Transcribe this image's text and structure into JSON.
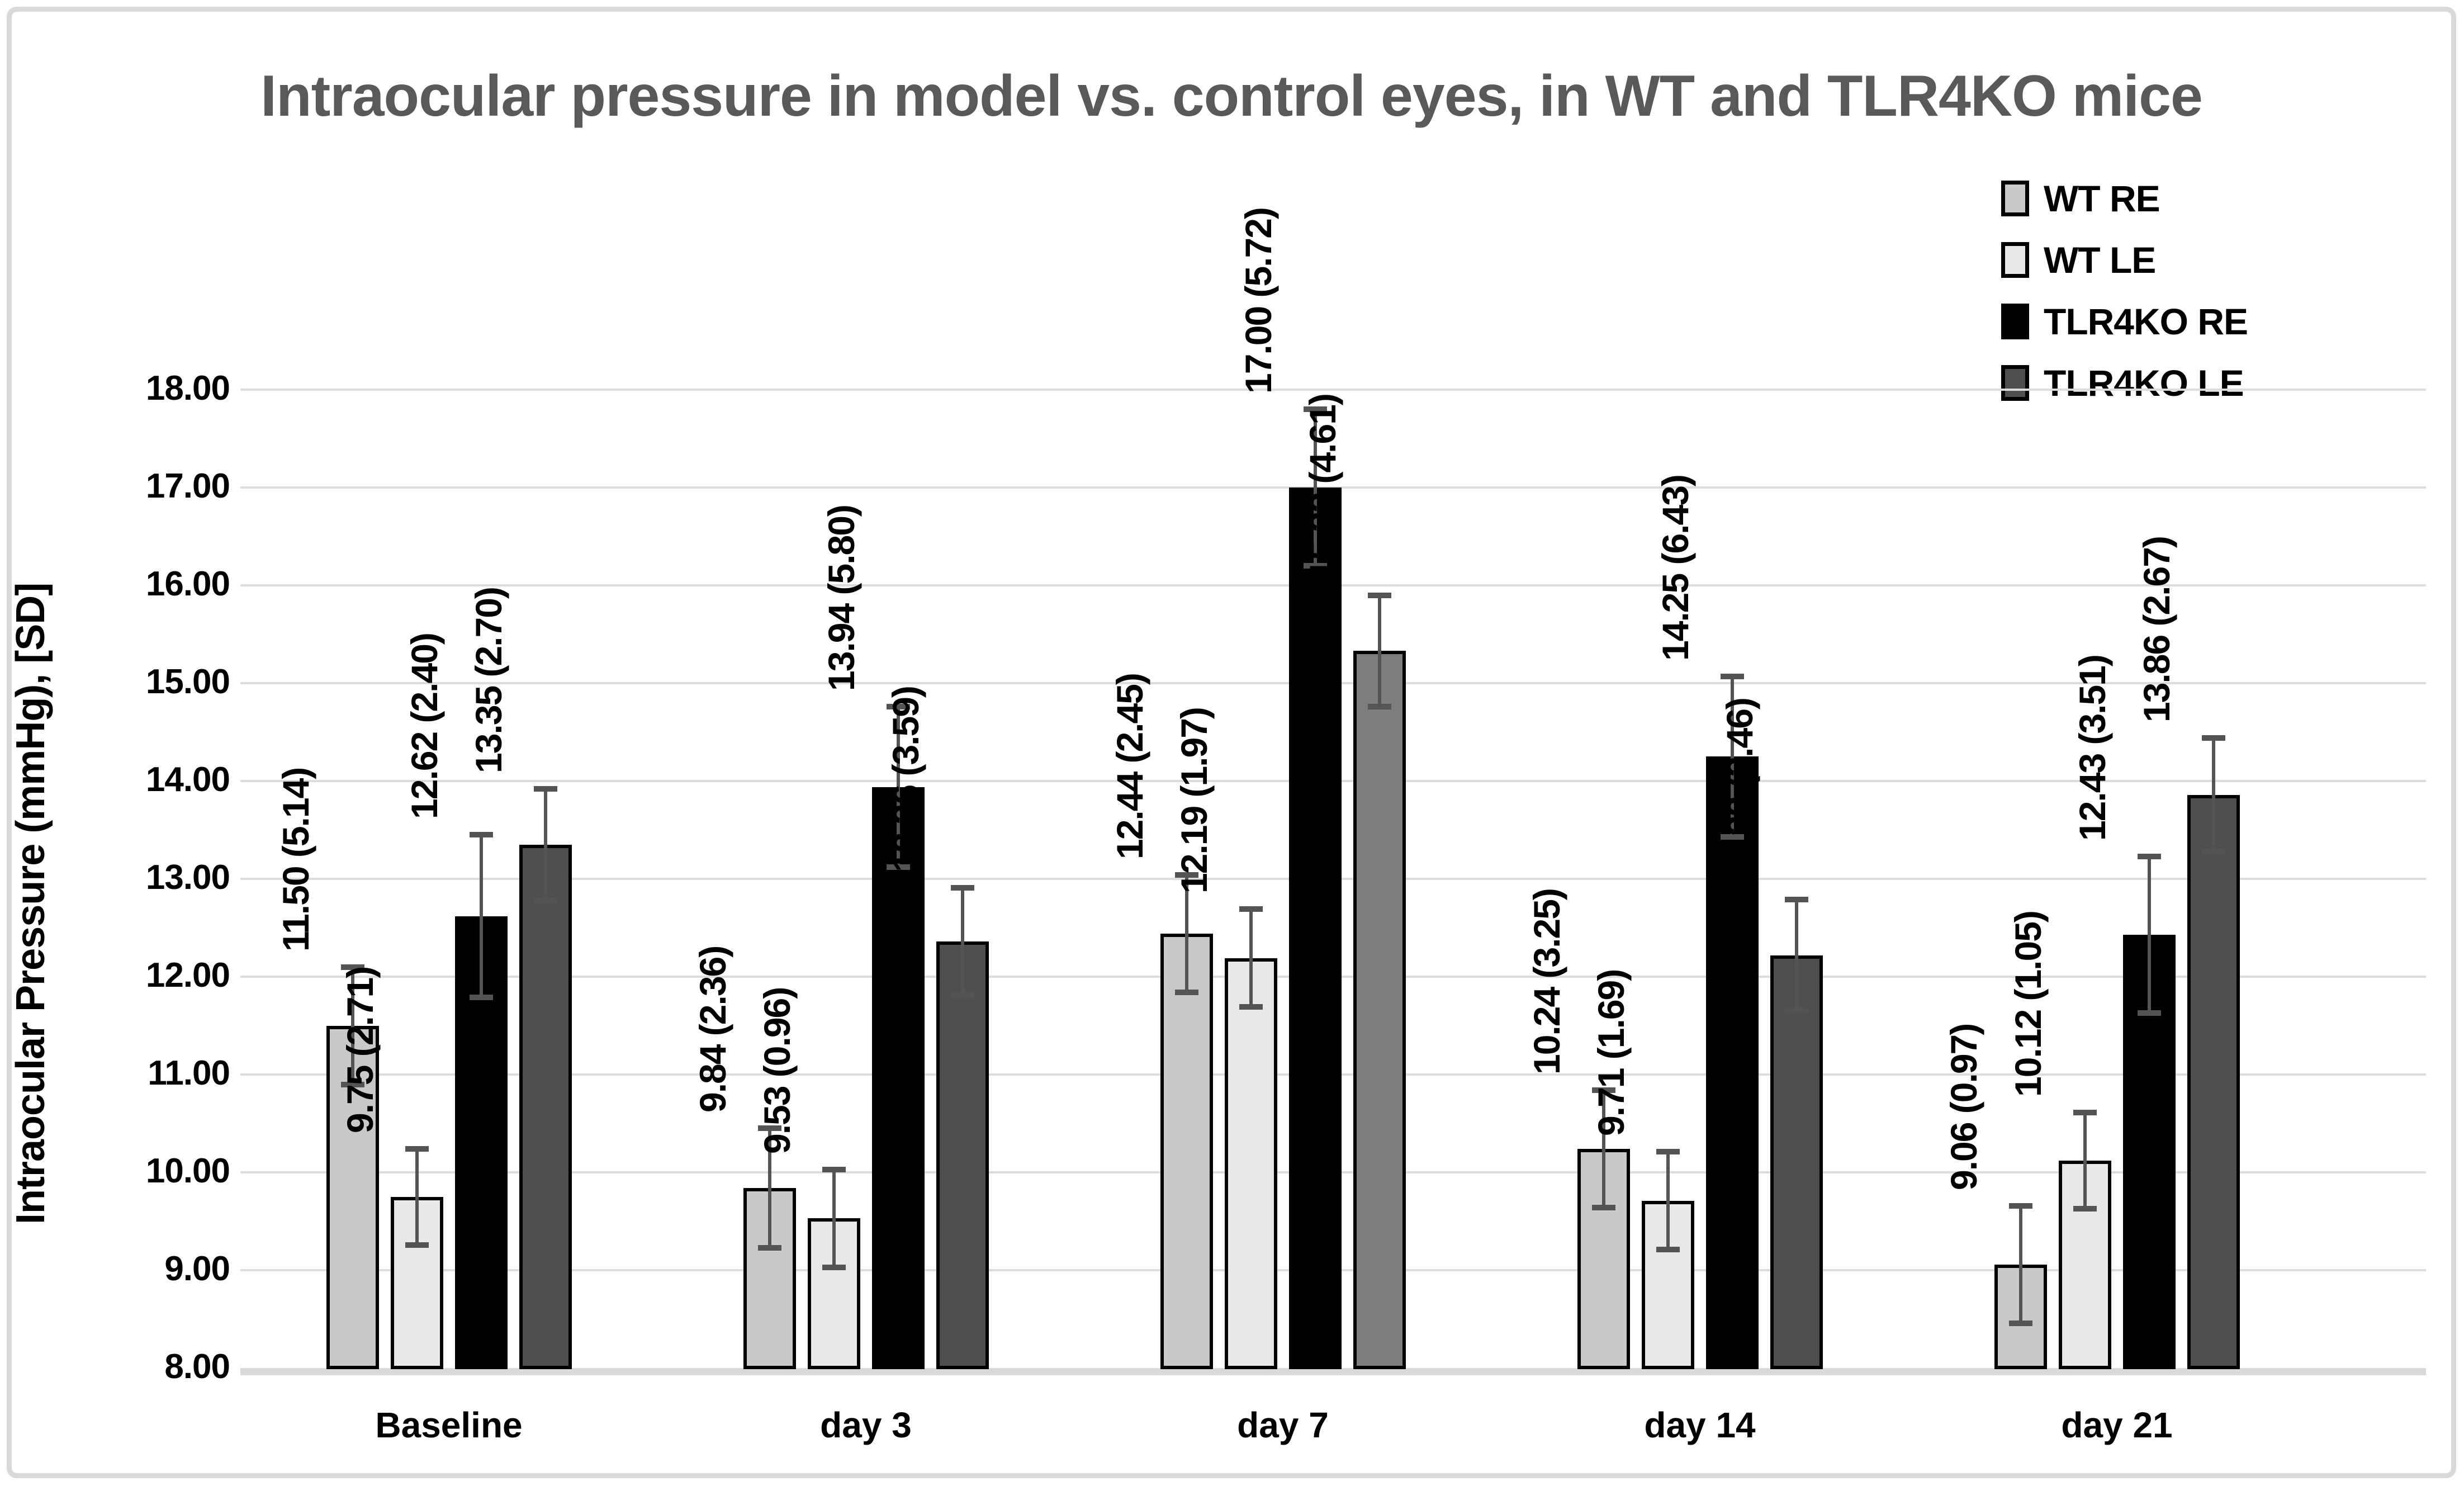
{
  "figure": {
    "background": "#ffffff",
    "frame_color": "#d9d9d9"
  },
  "chart_data": {
    "type": "bar",
    "title": "Intraocular pressure in model vs. control eyes, in WT and TLR4KO mice",
    "title_color": "#595959",
    "xlabel": "",
    "ylabel": "Intraocular Pressure (mmHg), [SD]",
    "categories": [
      "Baseline",
      "day 3",
      "day 7",
      "day 14",
      "day 21"
    ],
    "ylim": [
      8,
      18
    ],
    "ytick_step": 1,
    "ytick_decimals": 2,
    "grid": true,
    "gridline_color": "#dcdcdc",
    "axisline_color": "#d9d9d9",
    "errorbar_color": "#545454",
    "legend_position": "top-right-overlay",
    "data_label_format": "{value} ({sd})",
    "series": [
      {
        "name": "WT RE",
        "fill": "#c9c9c9",
        "border": "#000000",
        "values": [
          11.5,
          9.84,
          12.44,
          10.24,
          9.06
        ],
        "sd": [
          5.14,
          2.36,
          2.45,
          3.25,
          0.97
        ],
        "error_plus_minus": [
          0.6,
          0.61,
          0.6,
          0.6,
          0.6
        ]
      },
      {
        "name": "WT LE",
        "fill": "#e8e8e8",
        "border": "#000000",
        "values": [
          9.75,
          9.53,
          12.19,
          9.71,
          10.12
        ],
        "sd": [
          2.71,
          0.96,
          1.97,
          1.69,
          1.05
        ],
        "error_plus_minus": [
          0.49,
          0.5,
          0.5,
          0.5,
          0.49
        ]
      },
      {
        "name": "TLR4KO RE",
        "fill": "#000000",
        "border": "#000000",
        "values": [
          12.62,
          13.94,
          17.0,
          14.25,
          12.43
        ],
        "sd": [
          2.4,
          5.8,
          5.72,
          6.43,
          3.51
        ],
        "error_plus_minus": [
          0.83,
          0.82,
          0.8,
          0.82,
          0.8
        ]
      },
      {
        "name": "TLR4KO LE",
        "fill": "#4f4f4f",
        "border": "#000000",
        "values": [
          13.35,
          12.36,
          15.33,
          12.22,
          13.86
        ],
        "sd": [
          2.7,
          3.59,
          4.61,
          3.46,
          2.67
        ],
        "error_plus_minus": [
          0.57,
          0.55,
          0.57,
          0.57,
          0.58
        ]
      }
    ],
    "bar_fill_overrides": [
      {
        "series": "TLR4KO LE",
        "category": "day 7",
        "fill": "#7d7d7d"
      }
    ]
  }
}
